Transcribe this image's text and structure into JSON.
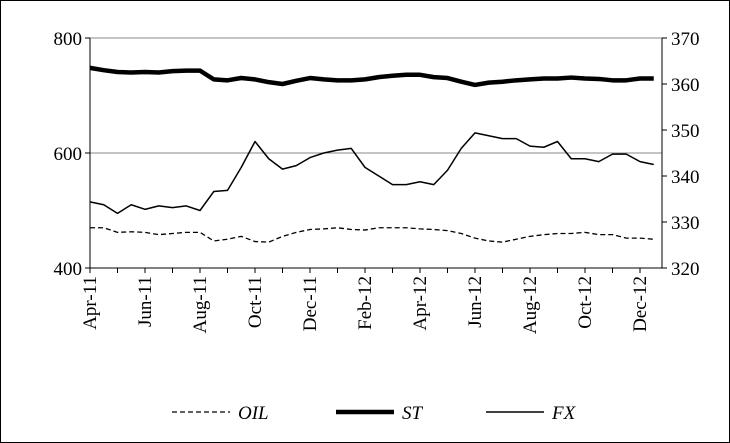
{
  "chart_data": {
    "type": "line",
    "categories": [
      "Apr-11",
      null,
      null,
      null,
      "Jun-11",
      null,
      null,
      null,
      "Aug-11",
      null,
      null,
      null,
      "Oct-11",
      null,
      null,
      null,
      "Dec-11",
      null,
      null,
      null,
      "Feb-12",
      null,
      null,
      null,
      "Apr-12",
      null,
      null,
      null,
      "Jun-12",
      null,
      null,
      null,
      "Aug-12",
      null,
      null,
      null,
      "Oct-12",
      null,
      null,
      null,
      "Dec-12",
      null
    ],
    "series": [
      {
        "name": "OIL",
        "color": "#000000",
        "style": "dashed",
        "values": [
          470,
          470,
          462,
          463,
          462,
          458,
          460,
          462,
          462,
          447,
          450,
          455,
          446,
          445,
          455,
          462,
          467,
          468,
          470,
          467,
          466,
          470,
          470,
          470,
          468,
          467,
          465,
          460,
          452,
          447,
          445,
          450,
          455,
          458,
          460,
          460,
          462,
          458,
          458,
          452,
          452,
          450
        ]
      },
      {
        "name": "ST",
        "color": "#000000",
        "style": "thick",
        "axis": "y2",
        "values": [
          363.5,
          363,
          362.6,
          362.5,
          362.6,
          362.5,
          362.8,
          362.9,
          362.9,
          361,
          360.8,
          361.3,
          361,
          360.4,
          360,
          360.7,
          361.3,
          361,
          360.8,
          360.8,
          361,
          361.5,
          361.8,
          362,
          362,
          361.5,
          361.3,
          360.5,
          359.8,
          360.3,
          360.5,
          360.8,
          361,
          361.2,
          361.2,
          361.4,
          361.2,
          361.1,
          360.8,
          360.8,
          361.2,
          361.2
        ]
      },
      {
        "name": "FX",
        "color": "#000000",
        "style": "thin",
        "values": [
          515,
          510,
          495,
          510,
          502,
          508,
          505,
          508,
          500,
          533,
          535,
          575,
          620,
          590,
          572,
          578,
          592,
          600,
          605,
          608,
          575,
          560,
          545,
          545,
          550,
          545,
          570,
          608,
          635,
          630,
          625,
          625,
          612,
          610,
          620,
          590,
          590,
          585,
          598,
          598,
          585,
          580
        ]
      }
    ],
    "ylim": [
      400,
      800
    ],
    "yticks": [
      400,
      600,
      800
    ],
    "y2lim": [
      320,
      370
    ],
    "y2ticks": [
      320,
      330,
      340,
      350,
      360,
      370
    ],
    "grid": true,
    "legend": "bottom"
  }
}
